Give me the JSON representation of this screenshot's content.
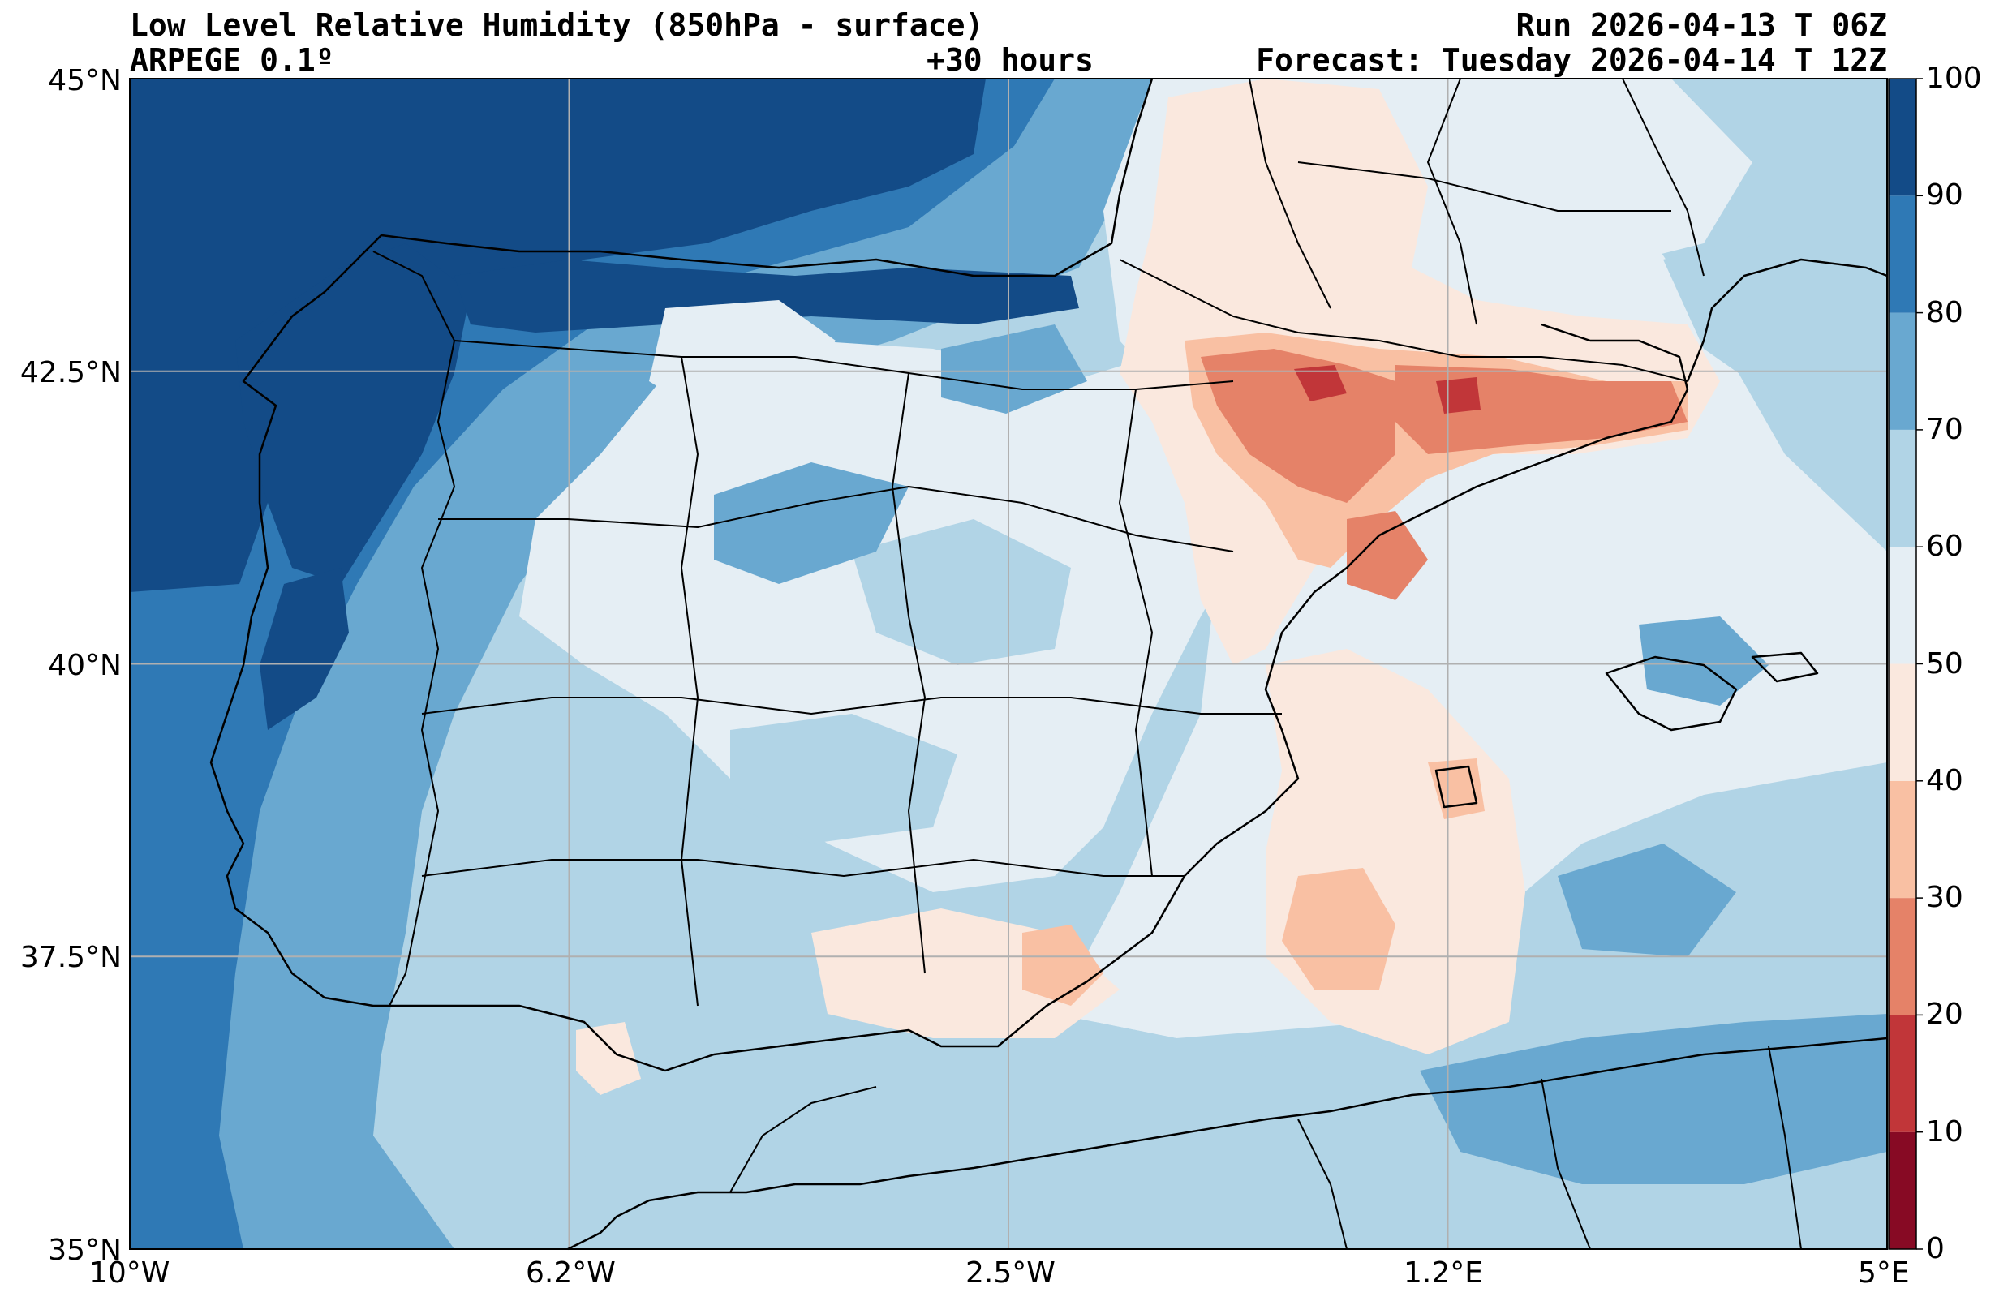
{
  "header": {
    "title": "Low Level Relative Humidity (850hPa - surface)",
    "model": "ARPEGE 0.1º",
    "lead_time": "+30 hours",
    "run": "Run 2026-04-13 T 06Z",
    "forecast": "Forecast: Tuesday 2026-04-14 T 12Z"
  },
  "map": {
    "extent": {
      "lon_min": -10,
      "lon_max": 5,
      "lat_min": 35,
      "lat_max": 45
    },
    "lon_ticks": [
      {
        "value": -10,
        "label": "10°W"
      },
      {
        "value": -6.25,
        "label": "6.2°W"
      },
      {
        "value": -2.5,
        "label": "2.5°W"
      },
      {
        "value": 1.25,
        "label": "1.2°E"
      },
      {
        "value": 5,
        "label": "5°E"
      }
    ],
    "lat_ticks": [
      {
        "value": 45,
        "label": "45°N"
      },
      {
        "value": 42.5,
        "label": "42.5°N"
      },
      {
        "value": 40,
        "label": "40°N"
      },
      {
        "value": 37.5,
        "label": "37.5°N"
      },
      {
        "value": 35,
        "label": "35°N"
      }
    ],
    "gridlines": true
  },
  "colorbar": {
    "levels": [
      0,
      10,
      20,
      30,
      40,
      50,
      60,
      70,
      80,
      90,
      100
    ],
    "labels": [
      "0",
      "10",
      "20",
      "30",
      "40",
      "50",
      "60",
      "70",
      "80",
      "90",
      "100"
    ],
    "colors": [
      "#870a24",
      "#c13639",
      "#e58268",
      "#f9c0a3",
      "#fae8de",
      "#e5eef4",
      "#b1d4e6",
      "#69a8d0",
      "#2f79b5",
      "#134b87"
    ]
  }
}
